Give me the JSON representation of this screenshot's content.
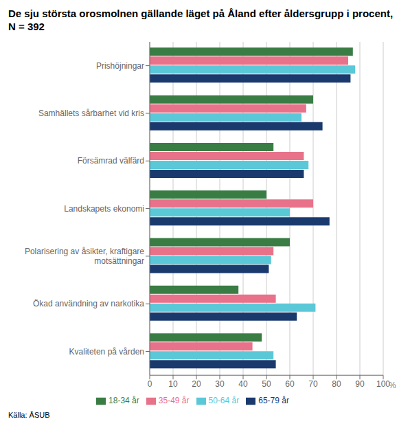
{
  "chart_data": {
    "type": "bar",
    "orientation": "horizontal",
    "title": "De sju största orosmolnen gällande läget på Åland efter åldersgrupp i procent, N = 392",
    "xlabel": "%",
    "annotations": [
      "Källa: ÅSUB"
    ],
    "categories": [
      "Prishöjningar",
      "Samhällets sårbarhet vid kris",
      "Försämrad välfärd",
      "Landskapets ekonomi",
      "Polarisering av åsikter, kraftigare\nmotsättningar",
      "Ökad användning av narkotika",
      "Kvaliteten på vården"
    ],
    "series": [
      {
        "name": "18-34 år",
        "color": "#3A7D44",
        "values": [
          87,
          70,
          53,
          50,
          60,
          38,
          48
        ]
      },
      {
        "name": "35-49 år",
        "color": "#E8728A",
        "values": [
          85,
          67,
          66,
          70,
          53,
          54,
          44
        ]
      },
      {
        "name": "50-64 år",
        "color": "#5BC8D8",
        "values": [
          88,
          65,
          68,
          60,
          52,
          71,
          53
        ]
      },
      {
        "name": "65-79 år",
        "color": "#1A3A6E",
        "values": [
          86,
          74,
          66,
          77,
          51,
          63,
          54
        ]
      }
    ],
    "xlim": [
      0,
      100
    ],
    "xticks": [
      0,
      10,
      20,
      30,
      40,
      50,
      60,
      70,
      80,
      90,
      100
    ],
    "grid": "x",
    "legend": "bottom"
  }
}
